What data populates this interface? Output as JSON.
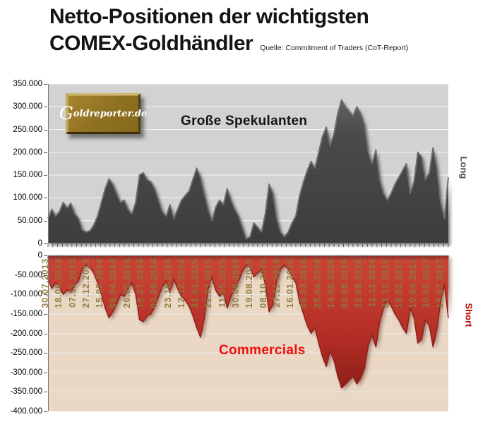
{
  "title": {
    "line1": "Netto-Positionen der wichtigsten",
    "line2": "COMEX-Goldhändler",
    "source_note": "Quelle: Commitment of Traders (CoT-Report)"
  },
  "logo": {
    "text": "Goldreporter.de",
    "initial": "G",
    "rest": "oldreporter.de"
  },
  "top_chart": {
    "label": "Große Spekulanten",
    "side_label": "Long",
    "y_labels": [
      "350.000",
      "300.000",
      "250.000",
      "200.000",
      "150.000",
      "100.000",
      "50.000",
      "0"
    ],
    "bg_color": "#d2d2d2",
    "area_color": "#474747",
    "side_label_color": "#4d4d4d"
  },
  "bottom_chart": {
    "label": "Commercials",
    "side_label": "Short",
    "y_labels": [
      "0",
      "-50.000",
      "-100.000",
      "-150.000",
      "-200.000",
      "-250.000",
      "-300.000",
      "-350.000",
      "-400.000"
    ],
    "bg_color": "#ead8c5",
    "area_color_top": "#c84335",
    "area_color_bottom": "#8c1f18",
    "label_color": "#ee0f0f",
    "x_label_color": "#8b7b3d"
  },
  "chart_data": {
    "type": "area",
    "title": "Netto-Positionen der wichtigsten COMEX-Goldhändler",
    "subtitle": "Quelle: Commitment of Traders (CoT-Report)",
    "grid": true,
    "x_start_date": "30.07.2013",
    "x_point_interval_days": 14,
    "x_label_interval_days": 50,
    "x_tick_labels": [
      "30.07.2013",
      "18.09.2013",
      "07.11.2013",
      "27.12.2013",
      "15.02.2014",
      "06.04.2014",
      "26.05.2014",
      "15.07.2014",
      "03.09.2014",
      "23.10.2014",
      "12.12.2014",
      "31.01.2015",
      "22.03.2015",
      "11.05.2015",
      "30.06.2015",
      "19.08.2015",
      "08.10.2015",
      "27.11.2015",
      "16.01.2016",
      "06.03.2016",
      "25.04.2016",
      "14.06.2016",
      "03.08.2016",
      "22.09.2016",
      "11.11.2016",
      "31.12.2016",
      "19.02.2017",
      "10.04.2017",
      "30.05.2017",
      "19.07.2017"
    ],
    "series": [
      {
        "name": "Große Spekulanten",
        "position": "Long",
        "axis_range": [
          0,
          350000
        ],
        "values": [
          55000,
          75000,
          60000,
          70000,
          90000,
          78000,
          88000,
          65000,
          55000,
          30000,
          25000,
          28000,
          40000,
          60000,
          90000,
          120000,
          142000,
          130000,
          110000,
          90000,
          95000,
          75000,
          65000,
          90000,
          150000,
          155000,
          140000,
          135000,
          120000,
          95000,
          70000,
          60000,
          85000,
          55000,
          75000,
          95000,
          105000,
          115000,
          140000,
          165000,
          145000,
          110000,
          75000,
          50000,
          80000,
          95000,
          85000,
          120000,
          95000,
          75000,
          60000,
          35000,
          10000,
          15000,
          45000,
          35000,
          25000,
          65000,
          130000,
          110000,
          55000,
          25000,
          15000,
          25000,
          45000,
          60000,
          105000,
          135000,
          160000,
          180000,
          165000,
          200000,
          235000,
          255000,
          215000,
          240000,
          285000,
          315000,
          300000,
          290000,
          280000,
          300000,
          285000,
          260000,
          200000,
          175000,
          205000,
          140000,
          110000,
          95000,
          110000,
          130000,
          145000,
          160000,
          175000,
          110000,
          135000,
          200000,
          190000,
          140000,
          155000,
          210000,
          165000,
          90000,
          55000,
          145000
        ]
      },
      {
        "name": "Commercials",
        "position": "Short",
        "axis_range": [
          -400000,
          0
        ],
        "values": [
          -60000,
          -85000,
          -70000,
          -80000,
          -100000,
          -88000,
          -95000,
          -75000,
          -65000,
          -35000,
          -25000,
          -30000,
          -45000,
          -70000,
          -100000,
          -135000,
          -160000,
          -145000,
          -125000,
          -100000,
          -105000,
          -85000,
          -70000,
          -100000,
          -165000,
          -170000,
          -155000,
          -150000,
          -130000,
          -105000,
          -80000,
          -65000,
          -95000,
          -60000,
          -85000,
          -105000,
          -115000,
          -130000,
          -155000,
          -185000,
          -210000,
          -160000,
          -85000,
          -55000,
          -90000,
          -105000,
          -95000,
          -135000,
          -105000,
          -85000,
          -65000,
          -40000,
          -25000,
          -30000,
          -55000,
          -45000,
          -35000,
          -75000,
          -145000,
          -125000,
          -65000,
          -35000,
          -25000,
          -35000,
          -55000,
          -70000,
          -120000,
          -150000,
          -180000,
          -200000,
          -185000,
          -225000,
          -260000,
          -285000,
          -245000,
          -270000,
          -310000,
          -340000,
          -330000,
          -320000,
          -310000,
          -330000,
          -315000,
          -290000,
          -230000,
          -205000,
          -235000,
          -170000,
          -135000,
          -115000,
          -130000,
          -150000,
          -165000,
          -185000,
          -200000,
          -135000,
          -160000,
          -225000,
          -215000,
          -165000,
          -180000,
          -235000,
          -190000,
          -115000,
          -75000,
          -160000
        ]
      }
    ]
  }
}
